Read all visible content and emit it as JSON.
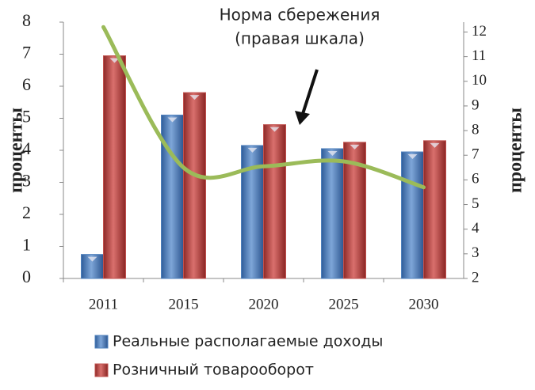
{
  "chart_data": {
    "type": "bar",
    "categories": [
      "2011",
      "2015",
      "2020",
      "2025",
      "2030"
    ],
    "series": [
      {
        "name": "Реальные располагаемые доходы",
        "color": "#4f81bd",
        "values": [
          0.75,
          5.1,
          4.15,
          4.05,
          3.95
        ]
      },
      {
        "name": "Розничный товарооборот",
        "color": "#c0504d",
        "values": [
          6.95,
          5.8,
          4.8,
          4.25,
          4.3
        ]
      },
      {
        "type": "line",
        "axis": "y2",
        "color": "#9bbb59",
        "values": [
          12.2,
          6.5,
          6.55,
          6.75,
          5.7
        ]
      }
    ],
    "ylabel": "проценты",
    "y2label": "проценты",
    "annotation": [
      "Норма сбережения",
      "(правая шкала)"
    ],
    "ylim": [
      0,
      8
    ],
    "yticks": [
      0,
      1,
      2,
      3,
      4,
      5,
      6,
      7,
      8
    ],
    "y2lim": [
      2,
      12.4
    ],
    "y2ticks": [
      2,
      3,
      4,
      5,
      6,
      7,
      8,
      9,
      10,
      11,
      12
    ],
    "grid": false
  }
}
